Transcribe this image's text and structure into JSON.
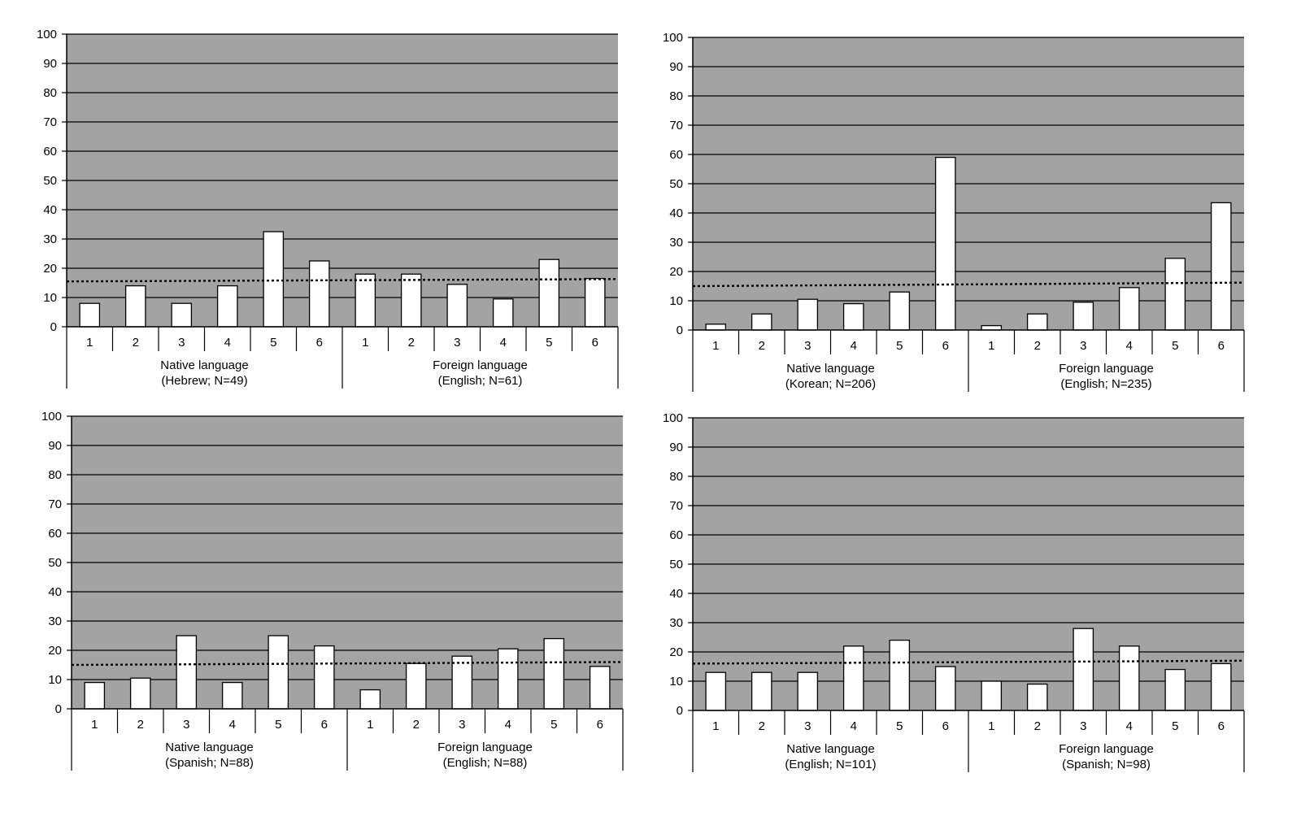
{
  "style": {
    "plot_background": "#a3a3a3",
    "bar_fill": "#ffffff",
    "bar_stroke": "#000000",
    "gridline": "#000000",
    "reference_line": "dotted"
  },
  "chart_data": [
    {
      "type": "bar",
      "ylim": [
        0,
        100
      ],
      "yticks": [
        "0",
        "10",
        "20",
        "30",
        "40",
        "50",
        "60",
        "70",
        "80",
        "90",
        "100"
      ],
      "grid": true,
      "categories": [
        "1",
        "2",
        "3",
        "4",
        "5",
        "6",
        "1",
        "2",
        "3",
        "4",
        "5",
        "6"
      ],
      "values": [
        8,
        14,
        8,
        14,
        32.5,
        22.5,
        18,
        18,
        14.5,
        9.5,
        23,
        16.5
      ],
      "groups": [
        {
          "line1": "Native language",
          "line2": "(Hebrew; N=49)"
        },
        {
          "line1": "Foreign language",
          "line2": "(English; N=61)"
        }
      ],
      "reference_line": [
        15.5,
        16.3
      ]
    },
    {
      "type": "bar",
      "ylim": [
        0,
        100
      ],
      "yticks": [
        "0",
        "10",
        "20",
        "30",
        "40",
        "50",
        "60",
        "70",
        "80",
        "90",
        "100"
      ],
      "grid": true,
      "categories": [
        "1",
        "2",
        "3",
        "4",
        "5",
        "6",
        "1",
        "2",
        "3",
        "4",
        "5",
        "6"
      ],
      "values": [
        2,
        5.5,
        10.5,
        9,
        13,
        59,
        1.5,
        5.5,
        9.5,
        14.5,
        24.5,
        43.5
      ],
      "groups": [
        {
          "line1": "Native language",
          "line2": "(Korean; N=206)"
        },
        {
          "line1": "Foreign language",
          "line2": "(English; N=235)"
        }
      ],
      "reference_line": [
        15,
        16.2
      ]
    },
    {
      "type": "bar",
      "ylim": [
        0,
        100
      ],
      "yticks": [
        "0",
        "10",
        "20",
        "30",
        "40",
        "50",
        "60",
        "70",
        "80",
        "90",
        "100"
      ],
      "grid": true,
      "categories": [
        "1",
        "2",
        "3",
        "4",
        "5",
        "6",
        "1",
        "2",
        "3",
        "4",
        "5",
        "6"
      ],
      "values": [
        9,
        10.5,
        25,
        9,
        25,
        21.5,
        6.5,
        15.5,
        18,
        20.5,
        24,
        14.5
      ],
      "groups": [
        {
          "line1": "Native language",
          "line2": "(Spanish; N=88)"
        },
        {
          "line1": "Foreign language",
          "line2": "(English; N=88)"
        }
      ],
      "reference_line": [
        15,
        16
      ]
    },
    {
      "type": "bar",
      "ylim": [
        0,
        100
      ],
      "yticks": [
        "0",
        "10",
        "20",
        "30",
        "40",
        "50",
        "60",
        "70",
        "80",
        "90",
        "100"
      ],
      "grid": true,
      "categories": [
        "1",
        "2",
        "3",
        "4",
        "5",
        "6",
        "1",
        "2",
        "3",
        "4",
        "5",
        "6"
      ],
      "values": [
        13,
        13,
        13,
        22,
        24,
        15,
        10,
        9,
        28,
        22,
        14,
        16
      ],
      "groups": [
        {
          "line1": "Native language",
          "line2": "(English; N=101)"
        },
        {
          "line1": "Foreign language",
          "line2": "(Spanish; N=98)"
        }
      ],
      "reference_line": [
        16,
        17
      ]
    }
  ]
}
